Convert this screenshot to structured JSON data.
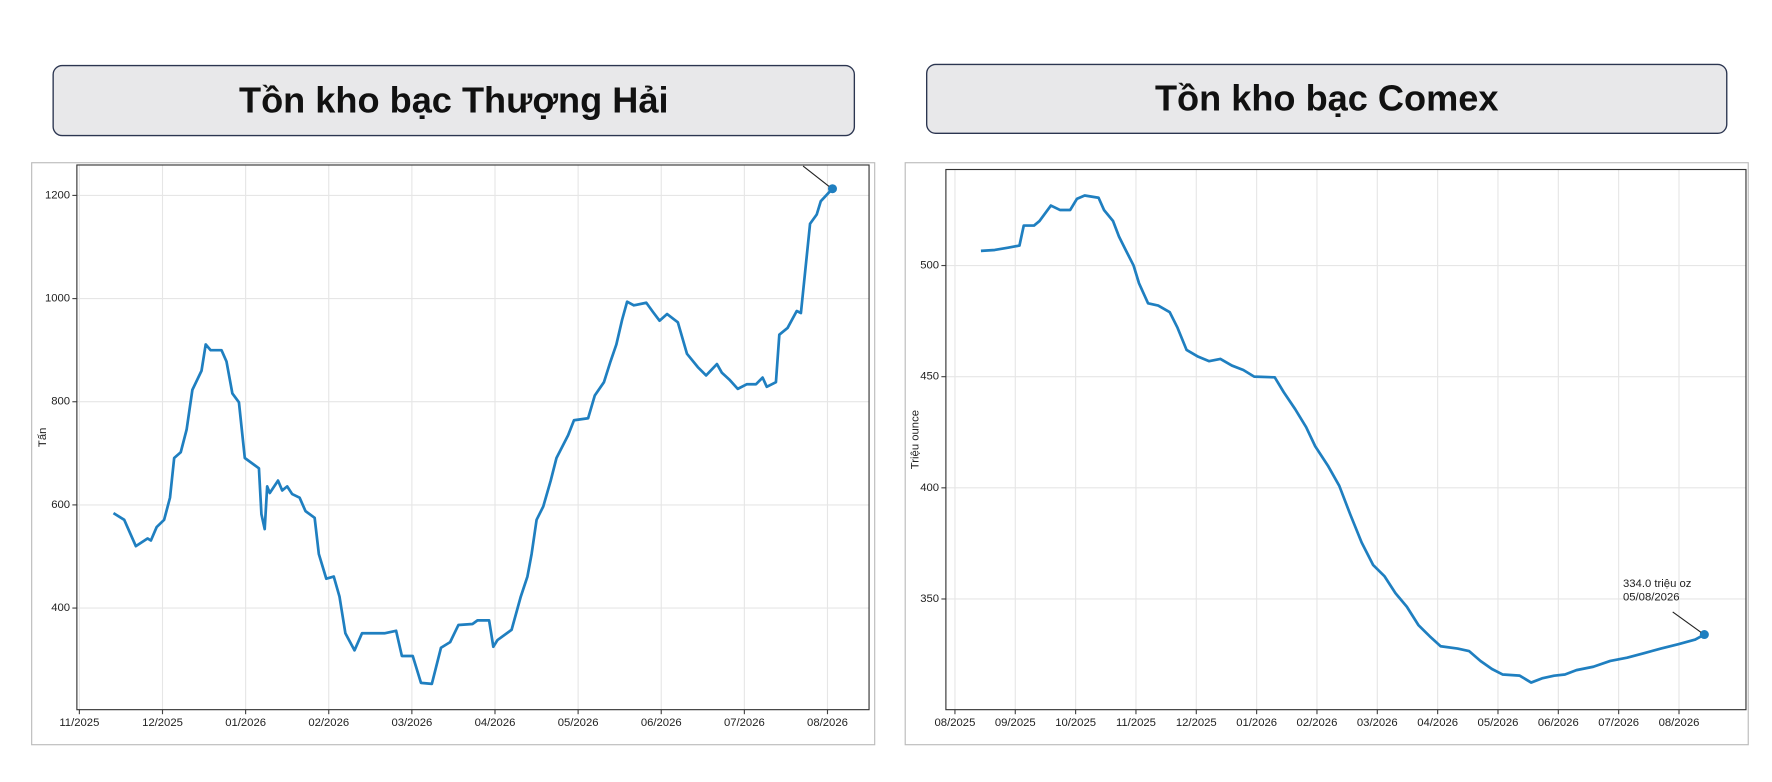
{
  "chart_data": [
    {
      "type": "line",
      "title": "Tồn kho bạc Thượng Hải",
      "y_label": "Tấn",
      "color": "#1f7fc0",
      "grid": true,
      "xlim": [
        -0.03,
        9.5
      ],
      "ylim": [
        203,
        1259
      ],
      "xticks": [
        {
          "value": 0,
          "label": "11/2025"
        },
        {
          "value": 1,
          "label": "12/2025"
        },
        {
          "value": 2,
          "label": "01/2026"
        },
        {
          "value": 3,
          "label": "02/2026"
        },
        {
          "value": 4,
          "label": "03/2026"
        },
        {
          "value": 5,
          "label": "04/2026"
        },
        {
          "value": 6,
          "label": "05/2026"
        },
        {
          "value": 7,
          "label": "06/2026"
        },
        {
          "value": 8,
          "label": "07/2026"
        },
        {
          "value": 9,
          "label": "08/2026"
        }
      ],
      "yticks": [
        400,
        600,
        800,
        1000,
        1200
      ],
      "x": [
        0.41,
        0.54,
        0.68,
        0.82,
        0.86,
        0.93,
        1.02,
        1.09,
        1.14,
        1.22,
        1.29,
        1.36,
        1.47,
        1.52,
        1.58,
        1.71,
        1.77,
        1.84,
        1.92,
        1.99,
        2.16,
        2.19,
        2.23,
        2.26,
        2.29,
        2.39,
        2.44,
        2.5,
        2.56,
        2.65,
        2.72,
        2.83,
        2.88,
        2.97,
        3.06,
        3.13,
        3.2,
        3.31,
        3.4,
        3.67,
        3.81,
        3.88,
        4.01,
        4.11,
        4.24,
        4.35,
        4.46,
        4.56,
        4.73,
        4.79,
        4.93,
        4.98,
        5.03,
        5.2,
        5.31,
        5.39,
        5.44,
        5.5,
        5.58,
        5.67,
        5.74,
        5.88,
        5.95,
        6.12,
        6.2,
        6.31,
        6.39,
        6.46,
        6.53,
        6.59,
        6.67,
        6.82,
        6.9,
        6.98,
        7.07,
        7.2,
        7.31,
        7.44,
        7.54,
        7.67,
        7.73,
        7.82,
        7.92,
        8.03,
        8.14,
        8.22,
        8.27,
        8.38,
        8.42,
        8.52,
        8.63,
        8.68,
        8.79,
        8.87,
        8.92,
        9.06
      ],
      "values": [
        584,
        571,
        520,
        535,
        531,
        557,
        571,
        614,
        691,
        702,
        746,
        823,
        860,
        911,
        900,
        900,
        878,
        816,
        799,
        691,
        671,
        582,
        553,
        636,
        623,
        647,
        628,
        636,
        621,
        614,
        588,
        575,
        505,
        457,
        461,
        422,
        351,
        318,
        351,
        351,
        356,
        307,
        307,
        255,
        253,
        323,
        334,
        367,
        369,
        376,
        376,
        325,
        338,
        358,
        422,
        461,
        505,
        571,
        597,
        647,
        691,
        735,
        764,
        768,
        812,
        838,
        878,
        911,
        959,
        994,
        987,
        992,
        974,
        957,
        970,
        954,
        893,
        867,
        851,
        873,
        856,
        843,
        825,
        834,
        834,
        847,
        829,
        838,
        930,
        943,
        976,
        972,
        1145,
        1163,
        1189,
        1213
      ]
    },
    {
      "type": "line",
      "title": "Tồn kho bạc Comex",
      "y_label": "Triệu ounce",
      "color": "#1f7fc0",
      "grid": true,
      "annotation": [
        "334.0 triệu oz",
        "05/08/2026"
      ],
      "xlim": [
        -0.15,
        13.11
      ],
      "ylim": [
        300.2,
        543.2
      ],
      "xticks": [
        {
          "value": 0,
          "label": "08/2025"
        },
        {
          "value": 1,
          "label": "09/2025"
        },
        {
          "value": 2,
          "label": "10/2025"
        },
        {
          "value": 3,
          "label": "11/2025"
        },
        {
          "value": 4,
          "label": "12/2025"
        },
        {
          "value": 5,
          "label": "01/2026"
        },
        {
          "value": 6,
          "label": "02/2026"
        },
        {
          "value": 7,
          "label": "03/2026"
        },
        {
          "value": 8,
          "label": "04/2026"
        },
        {
          "value": 9,
          "label": "05/2026"
        },
        {
          "value": 10,
          "label": "06/2026"
        },
        {
          "value": 11,
          "label": "07/2026"
        },
        {
          "value": 12,
          "label": "08/2026"
        }
      ],
      "yticks": [
        350,
        400,
        450,
        500
      ],
      "x": [
        0.43,
        0.66,
        0.88,
        1.07,
        1.14,
        1.31,
        1.4,
        1.59,
        1.74,
        1.91,
        2.02,
        2.15,
        2.38,
        2.47,
        2.62,
        2.72,
        2.83,
        2.96,
        3.05,
        3.2,
        3.37,
        3.56,
        3.69,
        3.84,
        4.03,
        4.21,
        4.4,
        4.59,
        4.78,
        4.96,
        5.3,
        5.45,
        5.64,
        5.82,
        5.97,
        6.18,
        6.37,
        6.55,
        6.74,
        6.93,
        7.12,
        7.3,
        7.49,
        7.68,
        7.87,
        8.05,
        8.33,
        8.52,
        8.71,
        8.9,
        9.08,
        9.36,
        9.55,
        9.74,
        9.93,
        10.11,
        10.3,
        10.58,
        10.86,
        11.14,
        11.42,
        11.7,
        11.99,
        12.27,
        12.42
      ],
      "values": [
        506.6,
        507,
        508,
        509,
        518,
        518,
        520,
        527,
        525,
        525,
        530,
        531.5,
        530.5,
        525,
        520,
        513,
        507,
        500,
        492,
        483,
        482,
        479,
        472,
        462,
        459,
        457,
        458,
        455,
        453,
        450,
        449.7,
        443,
        435.4,
        427.3,
        418.7,
        410,
        400.9,
        388.2,
        375.4,
        365.3,
        360.2,
        352.6,
        346.5,
        338.3,
        333.2,
        328.7,
        327.7,
        326.6,
        322.1,
        318.5,
        316,
        315.5,
        312.4,
        314.4,
        315.5,
        316,
        318,
        319.5,
        322.1,
        323.6,
        325.6,
        327.7,
        329.7,
        331.7,
        334
      ]
    }
  ]
}
